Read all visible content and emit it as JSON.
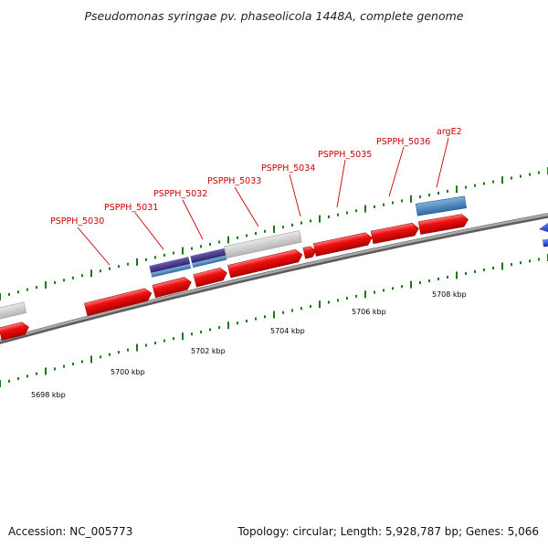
{
  "title": "Pseudomonas syringae pv. phaseolicola 1448A, complete genome",
  "footer": {
    "accession": "Accession: NC_005773",
    "stats": "Topology: circular; Length: 5,928,787 bp; Genes: 5,066"
  },
  "colors": {
    "cds": "#e00000",
    "rna_purple": "#4b3c8c",
    "blue_feature": "#3f7fb8",
    "other_feature": "#c6c6c6",
    "backbone": "#8a8a8a",
    "tick": "#1a7a1a",
    "label": "#cc0000",
    "arrow_blue": "#1f3fd0"
  },
  "genes": [
    {
      "name": "PSPPH_5030"
    },
    {
      "name": "PSPPH_5031"
    },
    {
      "name": "PSPPH_5032"
    },
    {
      "name": "PSPPH_5033"
    },
    {
      "name": "PSPPH_5034"
    },
    {
      "name": "PSPPH_5035"
    },
    {
      "name": "PSPPH_5036"
    },
    {
      "name": "argE2"
    }
  ],
  "position_labels": [
    "5698 kbp",
    "5700 kbp",
    "5702 kbp",
    "5704 kbp",
    "5706 kbp",
    "5708 kbp"
  ]
}
